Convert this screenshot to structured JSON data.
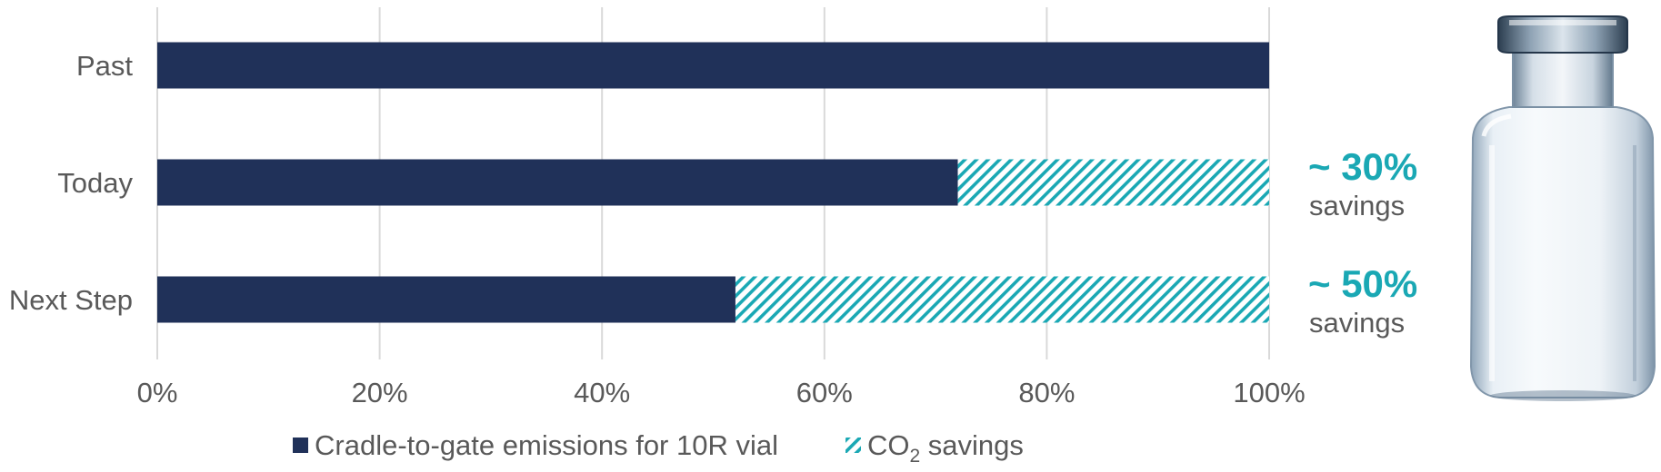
{
  "chart_data": {
    "type": "bar",
    "orientation": "horizontal",
    "stacked": true,
    "categories": [
      "Past",
      "Today",
      "Next Step"
    ],
    "series": [
      {
        "name": "Cradle-to-gate emissions for 10R vial",
        "values": [
          100,
          72,
          52
        ],
        "color": "#203159"
      },
      {
        "name": "CO2 savings",
        "values": [
          0,
          28,
          48
        ],
        "color": "#1aa8b4",
        "pattern": "hatched"
      }
    ],
    "xlim": [
      0,
      100
    ],
    "xticks": [
      "0%",
      "20%",
      "40%",
      "60%",
      "80%",
      "100%"
    ],
    "grid": true,
    "legend_position": "bottom",
    "annotations": [
      {
        "category": "Today",
        "value": "~ 30%",
        "label": "savings"
      },
      {
        "category": "Next Step",
        "value": "~ 50%",
        "label": "savings"
      }
    ]
  },
  "legend": {
    "item1": "Cradle-to-gate emissions for 10R vial",
    "item2_prefix": "CO",
    "item2_sub": "2",
    "item2_suffix": " savings"
  },
  "image": {
    "icon": "glass-vial-icon"
  }
}
